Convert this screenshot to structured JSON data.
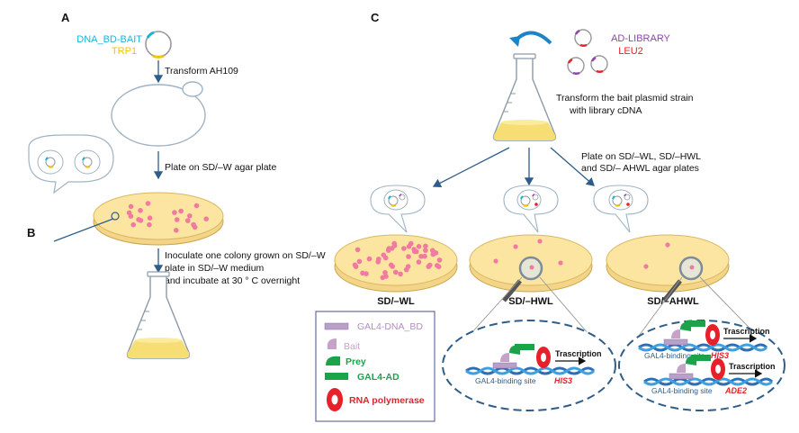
{
  "panels": {
    "a": "A",
    "b": "B",
    "c": "C"
  },
  "plasmid_a": {
    "bait": "DNA_BD-BAIT",
    "marker": "TRP1"
  },
  "plasmid_c": {
    "library": "AD-LIBRARY",
    "marker": "LEU2"
  },
  "steps": {
    "transform": "Transform AH109",
    "plate": "Plate on SD/–W agar plate",
    "inoculate_1": "Inoculate one colony grown on SD/–W",
    "inoculate_2": "plate in SD/–W medium",
    "inoculate_3": "and incubate at 30 ° C overnight",
    "transform_library_1": "Transform the bait  plasmid strain",
    "transform_library_2": "with library cDNA",
    "plate_multi_1": "Plate on SD/–WL, SD/–HWL",
    "plate_multi_2": "and SD/– AHWL agar plates"
  },
  "plates": {
    "wl": "SD/–WL",
    "hwl": "SD/–HWL",
    "ahwl": "SD/–AHWL"
  },
  "legend": {
    "bd": "GAL4-DNA_BD",
    "bait": "Bait",
    "prey": "Prey",
    "ad": "GAL4-AD",
    "pol": "RNA polymerase"
  },
  "zoom": {
    "transcription": "Trascription",
    "binding_site": "GAL4-binding site",
    "his3": "HIS3",
    "ade2": "ADE2"
  },
  "colors": {
    "agar": "#fbe5a0",
    "agar_edge": "#e0c063",
    "colony": "#f07aa0",
    "arrow": "#2f5d8a",
    "cyan": "#1ab3d6",
    "yellow": "#f2c400",
    "purple": "#8e44ad",
    "red": "#e8202a",
    "green": "#1aa34a",
    "bait": "#c5a3c8",
    "bd": "#b8a0c8"
  }
}
